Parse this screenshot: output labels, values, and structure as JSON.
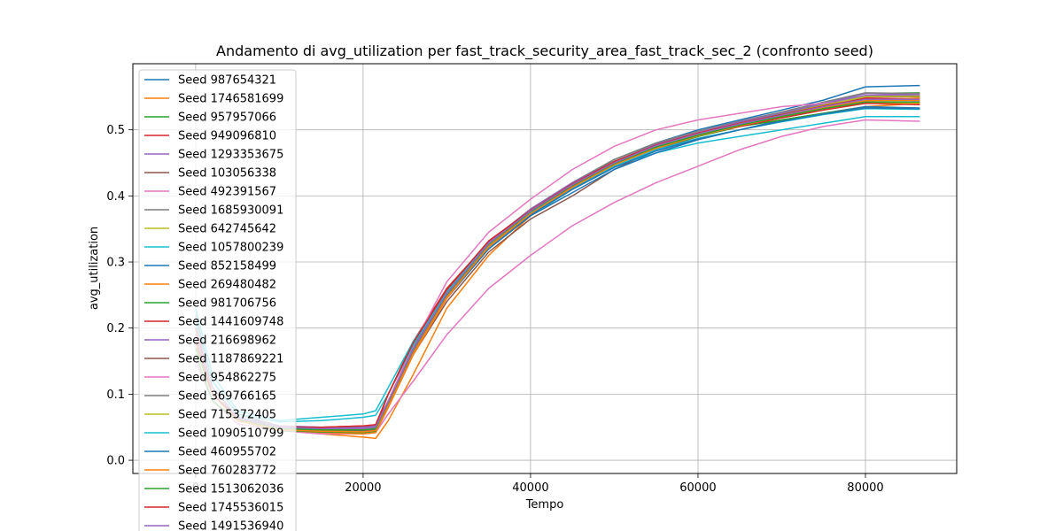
{
  "chart_data": {
    "type": "line",
    "title": "Andamento di avg_utilization per fast_track_security_area_fast_track_sec_2 (confronto seed)",
    "xlabel": "Tempo",
    "ylabel": "avg_utilization",
    "xlim": [
      -7500,
      90900
    ],
    "ylim": [
      -0.02,
      0.6
    ],
    "xticks": [
      0,
      20000,
      40000,
      60000,
      80000
    ],
    "xtick_labels": [
      "0",
      "20000",
      "40000",
      "60000",
      "80000"
    ],
    "yticks": [
      0.0,
      0.1,
      0.2,
      0.3,
      0.4,
      0.5
    ],
    "ytick_labels": [
      "0.0",
      "0.1",
      "0.2",
      "0.3",
      "0.4",
      "0.5"
    ],
    "grid": true,
    "legend_position": "top-left",
    "x": [
      0,
      2000,
      5000,
      10000,
      15000,
      20000,
      21500,
      23000,
      26000,
      30000,
      35000,
      40000,
      45000,
      50000,
      55000,
      60000,
      65000,
      70000,
      75000,
      80000,
      86500
    ],
    "series": [
      {
        "name": "Seed 987654321",
        "color": "#1f77b4",
        "values": [
          0.21,
          0.12,
          0.07,
          0.05,
          0.046,
          0.045,
          0.048,
          0.08,
          0.16,
          0.25,
          0.33,
          0.38,
          0.42,
          0.455,
          0.48,
          0.5,
          0.515,
          0.53,
          0.545,
          0.565,
          0.567
        ]
      },
      {
        "name": "Seed 1746581699",
        "color": "#ff7f0e",
        "values": [
          0.19,
          0.1,
          0.06,
          0.045,
          0.04,
          0.035,
          0.033,
          0.06,
          0.13,
          0.23,
          0.31,
          0.37,
          0.41,
          0.445,
          0.47,
          0.49,
          0.505,
          0.515,
          0.525,
          0.535,
          0.54
        ]
      },
      {
        "name": "Seed 957957066",
        "color": "#2ca02c",
        "values": [
          0.18,
          0.11,
          0.065,
          0.05,
          0.045,
          0.05,
          0.052,
          0.09,
          0.17,
          0.26,
          0.33,
          0.38,
          0.42,
          0.455,
          0.48,
          0.495,
          0.51,
          0.525,
          0.54,
          0.555,
          0.556
        ]
      },
      {
        "name": "Seed 949096810",
        "color": "#d62728",
        "values": [
          0.17,
          0.1,
          0.06,
          0.048,
          0.05,
          0.052,
          0.05,
          0.1,
          0.18,
          0.26,
          0.33,
          0.375,
          0.42,
          0.45,
          0.475,
          0.495,
          0.51,
          0.52,
          0.535,
          0.548,
          0.547
        ]
      },
      {
        "name": "Seed 1293353675",
        "color": "#9467bd",
        "values": [
          0.2,
          0.11,
          0.065,
          0.05,
          0.046,
          0.045,
          0.046,
          0.085,
          0.165,
          0.25,
          0.33,
          0.375,
          0.415,
          0.45,
          0.475,
          0.495,
          0.51,
          0.525,
          0.54,
          0.555,
          0.553
        ]
      },
      {
        "name": "Seed 103056338",
        "color": "#8c564b",
        "values": [
          0.16,
          0.09,
          0.06,
          0.045,
          0.042,
          0.04,
          0.042,
          0.08,
          0.16,
          0.24,
          0.315,
          0.365,
          0.4,
          0.44,
          0.47,
          0.49,
          0.505,
          0.52,
          0.535,
          0.55,
          0.552
        ]
      },
      {
        "name": "Seed 492391567",
        "color": "#e377c2",
        "values": [
          0.15,
          0.09,
          0.055,
          0.045,
          0.04,
          0.04,
          0.042,
          0.07,
          0.12,
          0.19,
          0.26,
          0.31,
          0.355,
          0.39,
          0.42,
          0.445,
          0.47,
          0.49,
          0.505,
          0.515,
          0.513
        ]
      },
      {
        "name": "Seed 1685930091",
        "color": "#7f7f7f",
        "values": [
          0.22,
          0.12,
          0.07,
          0.052,
          0.05,
          0.048,
          0.05,
          0.085,
          0.165,
          0.25,
          0.33,
          0.38,
          0.42,
          0.455,
          0.48,
          0.498,
          0.513,
          0.527,
          0.542,
          0.556,
          0.555
        ]
      },
      {
        "name": "Seed 642745642",
        "color": "#bcbd22",
        "values": [
          0.19,
          0.11,
          0.06,
          0.05,
          0.046,
          0.046,
          0.048,
          0.085,
          0.165,
          0.25,
          0.325,
          0.375,
          0.415,
          0.45,
          0.475,
          0.49,
          0.505,
          0.518,
          0.53,
          0.54,
          0.541
        ]
      },
      {
        "name": "Seed 1057800239",
        "color": "#17becf",
        "values": [
          0.23,
          0.13,
          0.075,
          0.06,
          0.065,
          0.07,
          0.075,
          0.11,
          0.18,
          0.255,
          0.32,
          0.37,
          0.41,
          0.445,
          0.465,
          0.48,
          0.49,
          0.5,
          0.51,
          0.52,
          0.52
        ]
      },
      {
        "name": "Seed 852158499",
        "color": "#1f77b4",
        "values": [
          0.18,
          0.1,
          0.065,
          0.05,
          0.048,
          0.05,
          0.052,
          0.09,
          0.165,
          0.245,
          0.32,
          0.37,
          0.405,
          0.44,
          0.465,
          0.485,
          0.5,
          0.515,
          0.525,
          0.535,
          0.533
        ]
      },
      {
        "name": "Seed 269480482",
        "color": "#ff7f0e",
        "values": [
          0.17,
          0.1,
          0.06,
          0.046,
          0.042,
          0.04,
          0.042,
          0.08,
          0.16,
          0.245,
          0.325,
          0.375,
          0.415,
          0.45,
          0.475,
          0.495,
          0.51,
          0.522,
          0.535,
          0.545,
          0.548
        ]
      },
      {
        "name": "Seed 981706756",
        "color": "#2ca02c",
        "values": [
          0.16,
          0.09,
          0.06,
          0.045,
          0.043,
          0.042,
          0.044,
          0.085,
          0.165,
          0.25,
          0.325,
          0.375,
          0.415,
          0.45,
          0.472,
          0.49,
          0.505,
          0.515,
          0.525,
          0.533,
          0.532
        ]
      },
      {
        "name": "Seed 1441609748",
        "color": "#d62728",
        "values": [
          0.2,
          0.11,
          0.065,
          0.05,
          0.048,
          0.05,
          0.052,
          0.1,
          0.175,
          0.255,
          0.33,
          0.375,
          0.415,
          0.45,
          0.475,
          0.492,
          0.505,
          0.518,
          0.53,
          0.54,
          0.538
        ]
      },
      {
        "name": "Seed 216698962",
        "color": "#9467bd",
        "values": [
          0.19,
          0.11,
          0.065,
          0.052,
          0.05,
          0.05,
          0.052,
          0.09,
          0.17,
          0.255,
          0.33,
          0.38,
          0.42,
          0.452,
          0.478,
          0.496,
          0.512,
          0.525,
          0.54,
          0.552,
          0.553
        ]
      },
      {
        "name": "Seed 1187869221",
        "color": "#8c564b",
        "values": [
          0.17,
          0.1,
          0.06,
          0.048,
          0.045,
          0.045,
          0.047,
          0.085,
          0.165,
          0.25,
          0.325,
          0.375,
          0.415,
          0.448,
          0.473,
          0.492,
          0.508,
          0.522,
          0.537,
          0.55,
          0.55
        ]
      },
      {
        "name": "Seed 954862275",
        "color": "#e377c2",
        "values": [
          0.18,
          0.1,
          0.062,
          0.05,
          0.047,
          0.047,
          0.05,
          0.09,
          0.175,
          0.27,
          0.345,
          0.395,
          0.44,
          0.475,
          0.5,
          0.515,
          0.525,
          0.535,
          0.54,
          0.545,
          0.544
        ]
      },
      {
        "name": "Seed 369766165",
        "color": "#7f7f7f",
        "values": [
          0.18,
          0.11,
          0.065,
          0.05,
          0.048,
          0.048,
          0.05,
          0.088,
          0.168,
          0.252,
          0.328,
          0.377,
          0.417,
          0.45,
          0.476,
          0.494,
          0.51,
          0.524,
          0.538,
          0.55,
          0.551
        ]
      },
      {
        "name": "Seed 715372405",
        "color": "#bcbd22",
        "values": [
          0.17,
          0.1,
          0.06,
          0.048,
          0.046,
          0.046,
          0.048,
          0.086,
          0.166,
          0.25,
          0.326,
          0.376,
          0.416,
          0.449,
          0.474,
          0.493,
          0.509,
          0.523,
          0.537,
          0.55,
          0.551
        ]
      },
      {
        "name": "Seed 1090510799",
        "color": "#17becf",
        "values": [
          0.21,
          0.12,
          0.07,
          0.058,
          0.06,
          0.065,
          0.068,
          0.1,
          0.175,
          0.255,
          0.328,
          0.375,
          0.412,
          0.445,
          0.47,
          0.487,
          0.5,
          0.512,
          0.523,
          0.532,
          0.531
        ]
      },
      {
        "name": "Seed 460955702",
        "color": "#1f77b4",
        "values": [
          0.19,
          0.11,
          0.065,
          0.05,
          0.047,
          0.046,
          0.048,
          0.086,
          0.165,
          0.248,
          0.323,
          0.372,
          0.41,
          0.443,
          0.468,
          0.486,
          0.5,
          0.513,
          0.524,
          0.533,
          0.532
        ]
      },
      {
        "name": "Seed 760283772",
        "color": "#ff7f0e",
        "values": [
          0.18,
          0.1,
          0.06,
          0.046,
          0.044,
          0.043,
          0.045,
          0.084,
          0.163,
          0.247,
          0.323,
          0.373,
          0.413,
          0.447,
          0.472,
          0.491,
          0.506,
          0.52,
          0.533,
          0.544,
          0.545
        ]
      },
      {
        "name": "Seed 1513062036",
        "color": "#2ca02c",
        "values": [
          0.17,
          0.1,
          0.062,
          0.048,
          0.046,
          0.046,
          0.048,
          0.087,
          0.167,
          0.251,
          0.327,
          0.376,
          0.416,
          0.449,
          0.474,
          0.492,
          0.507,
          0.52,
          0.532,
          0.542,
          0.542
        ]
      },
      {
        "name": "Seed 1745536015",
        "color": "#d62728",
        "values": [
          0.18,
          0.1,
          0.063,
          0.05,
          0.05,
          0.052,
          0.054,
          0.1,
          0.178,
          0.258,
          0.332,
          0.378,
          0.418,
          0.452,
          0.477,
          0.495,
          0.51,
          0.523,
          0.536,
          0.547,
          0.546
        ]
      },
      {
        "name": "Seed 1491536940",
        "color": "#9467bd",
        "values": [
          0.19,
          0.11,
          0.064,
          0.05,
          0.048,
          0.048,
          0.05,
          0.088,
          0.168,
          0.252,
          0.328,
          0.377,
          0.417,
          0.45,
          0.476,
          0.494,
          0.509,
          0.522,
          0.535,
          0.546,
          0.546
        ]
      }
    ]
  }
}
